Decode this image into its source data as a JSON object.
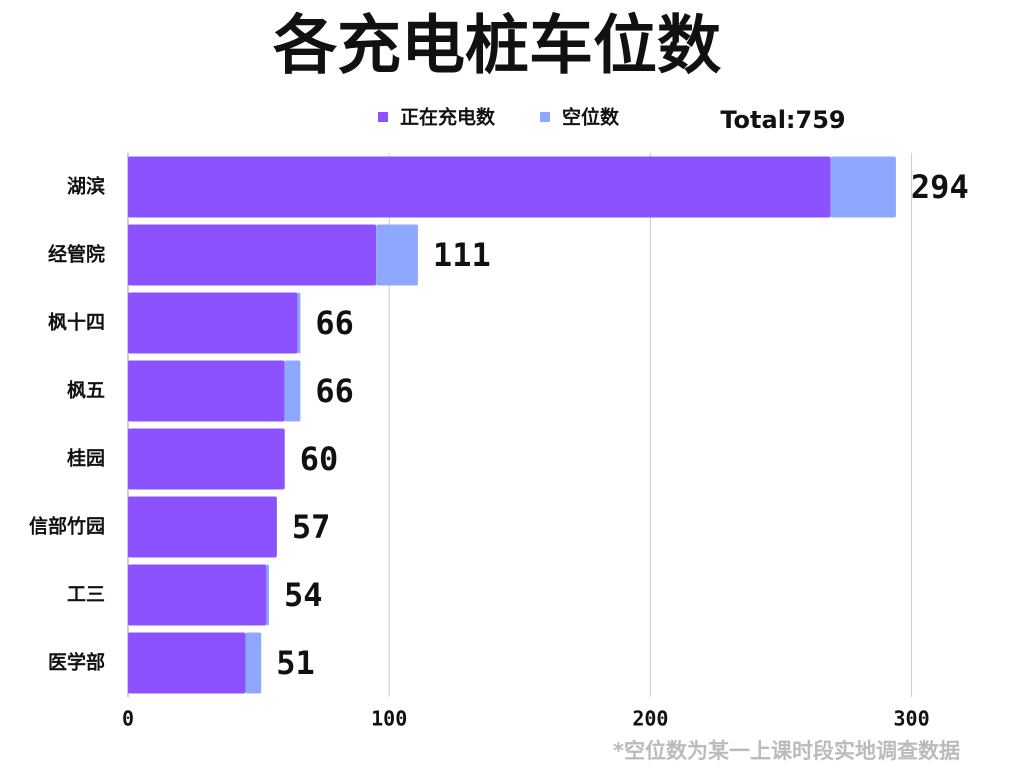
{
  "chart_data": {
    "type": "stacked_barh",
    "title": "各充电桩车位数",
    "total_label": "Total:759",
    "footnote": "*空位数为某一上课时段实地调查数据",
    "categories": [
      "湖滨",
      "经管院",
      "枫十四",
      "枫五",
      "桂园",
      "信部竹园",
      "工三",
      "医学部"
    ],
    "series": [
      {
        "name": "正在充电数",
        "color": "#8c52ff",
        "values": [
          269,
          95,
          65,
          60,
          60,
          57,
          53,
          45
        ]
      },
      {
        "name": "空位数",
        "color": "#8fa8ff",
        "values": [
          25,
          16,
          1,
          6,
          0,
          0,
          1,
          6
        ]
      }
    ],
    "totals": [
      294,
      111,
      66,
      66,
      60,
      57,
      54,
      51
    ],
    "xlim": [
      0,
      335
    ],
    "xticks": [
      0,
      100,
      200,
      300
    ],
    "grid": true
  }
}
